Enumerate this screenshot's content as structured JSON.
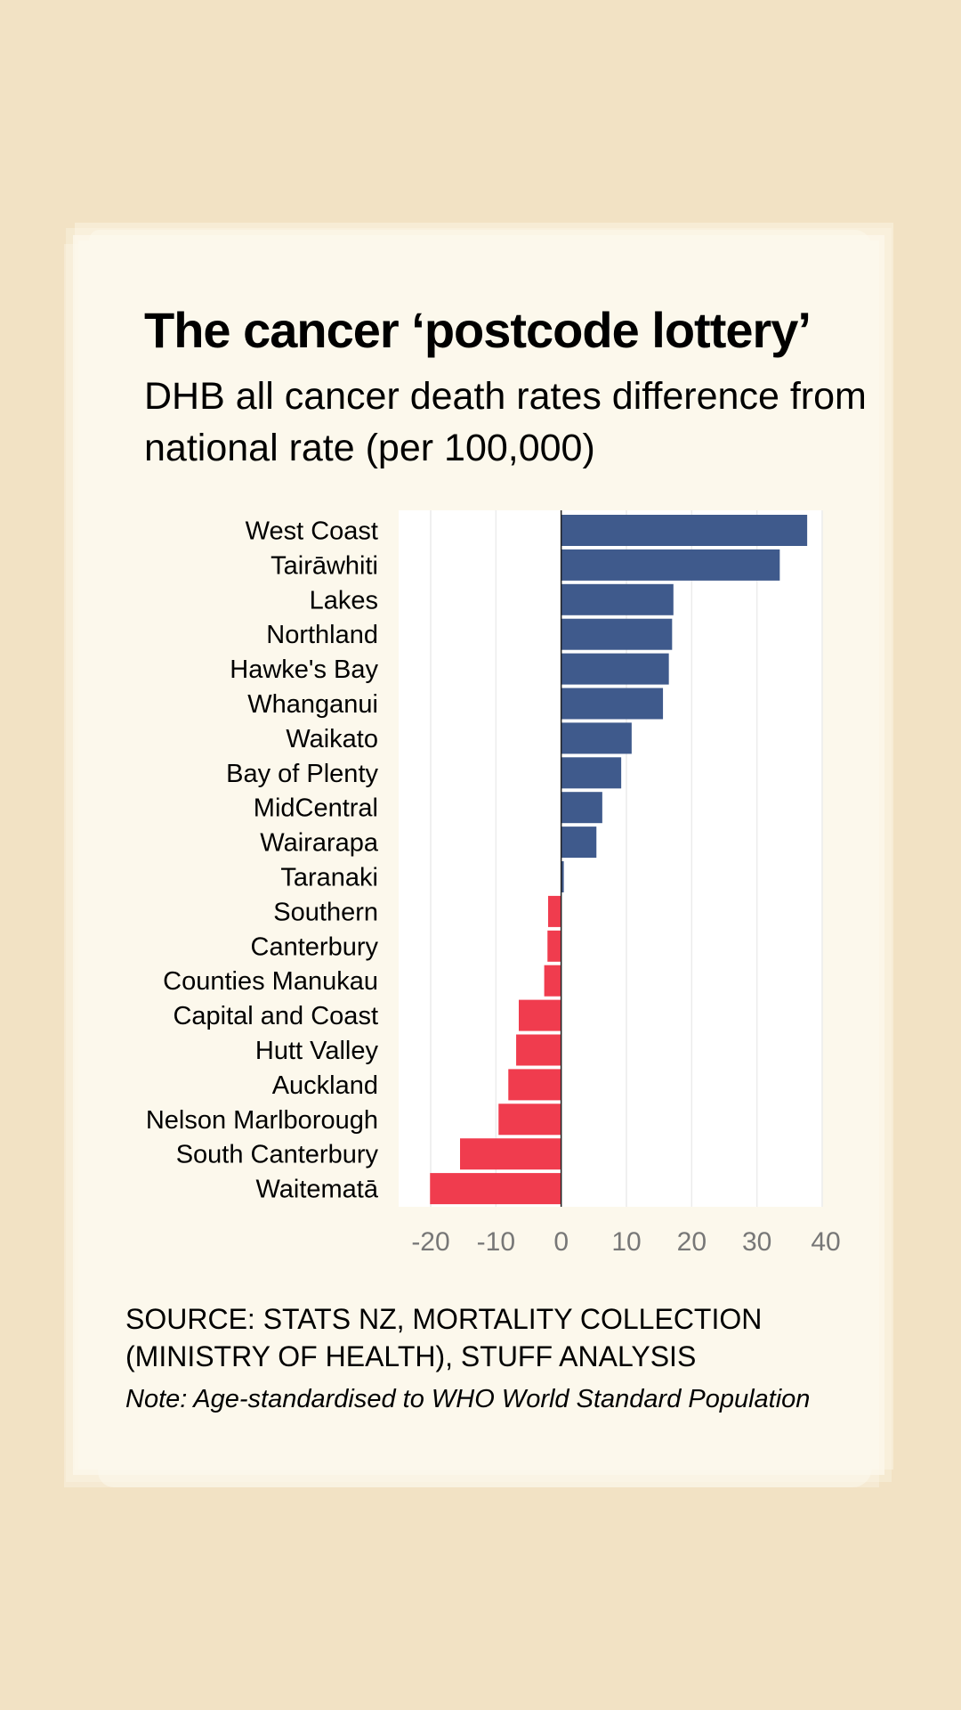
{
  "title": "The cancer ‘postcode lottery’",
  "subtitle": "DHB all cancer death rates difference from national rate (per 100,000)",
  "source": "SOURCE: STATS NZ, MORTALITY COLLECTION (MINISTRY OF HEALTH), STUFF ANALYSIS",
  "note": "Note: Age-standardised to WHO World Standard Population",
  "colors": {
    "positive": "#3f5a8c",
    "negative": "#f03c4e",
    "background": "#f2e2c4",
    "paper": "#fcf8ec",
    "tick_text": "#777777"
  },
  "chart_data": {
    "type": "bar",
    "orientation": "horizontal",
    "title": "The cancer ‘postcode lottery’",
    "subtitle": "DHB all cancer death rates difference from national rate (per 100,000)",
    "xlabel": "",
    "ylabel": "",
    "xlim": [
      -20,
      40
    ],
    "xticks": [
      -20,
      -10,
      0,
      10,
      20,
      30,
      40
    ],
    "xtick_labels": [
      "-20",
      "-10",
      "0",
      "10",
      "20",
      "30",
      "40"
    ],
    "grid": true,
    "legend": "none",
    "categories": [
      "West Coast",
      "Tairāwhiti",
      "Lakes",
      "Northland",
      "Hawke's Bay",
      "Whanganui",
      "Waikato",
      "Bay of Plenty",
      "MidCentral",
      "Wairarapa",
      "Taranaki",
      "Southern",
      "Canterbury",
      "Counties Manukau",
      "Capital and Coast",
      "Hutt Valley",
      "Auckland",
      "Nelson Marlborough",
      "South Canterbury",
      "Waitematā"
    ],
    "values": [
      37.7,
      33.5,
      17.2,
      17.0,
      16.5,
      15.6,
      10.8,
      9.2,
      6.3,
      5.4,
      0.4,
      -2.0,
      -2.1,
      -2.6,
      -6.5,
      -6.9,
      -8.1,
      -9.6,
      -15.5,
      -20.1
    ]
  }
}
